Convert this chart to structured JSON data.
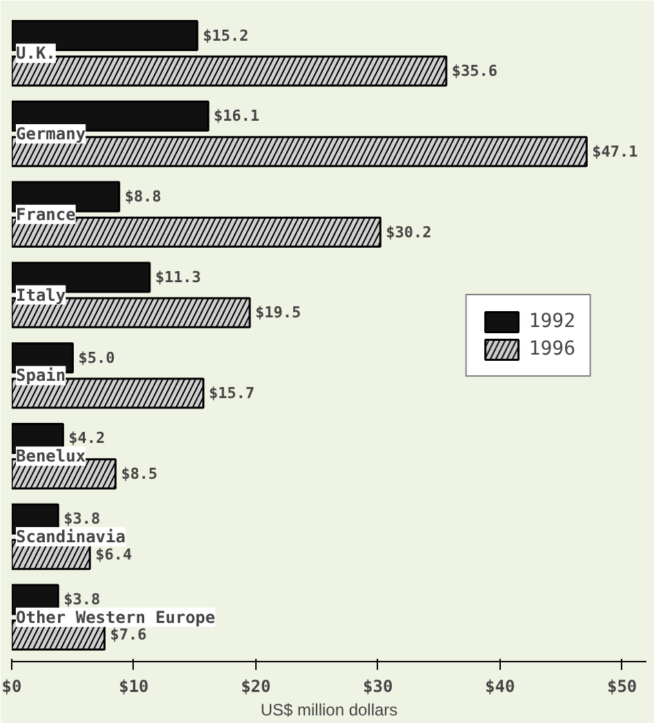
{
  "chart_data": {
    "type": "bar",
    "orientation": "horizontal",
    "xlabel": "US$ million dollars",
    "categories": [
      "U.K.",
      "Germany",
      "France",
      "Italy",
      "Spain",
      "Benelux",
      "Scandinavia",
      "Other Western Europe"
    ],
    "series": [
      {
        "name": "1992",
        "color": "#111111",
        "values": [
          15.2,
          16.1,
          8.8,
          11.3,
          5.0,
          4.2,
          3.8,
          3.8
        ],
        "value_labels": [
          "$15.2",
          "$16.1",
          "$8.8",
          "$11.3",
          "$5.0",
          "$4.2",
          "$3.8",
          "$3.8"
        ]
      },
      {
        "name": "1996",
        "color": "#d0d0d0",
        "values": [
          35.6,
          47.1,
          30.2,
          19.5,
          15.7,
          8.5,
          6.4,
          7.6
        ],
        "value_labels": [
          "$35.6",
          "$47.1",
          "$30.2",
          "$19.5",
          "$15.7",
          "$8.5",
          "$6.4",
          "$7.6"
        ]
      }
    ],
    "xlim": [
      0,
      52
    ],
    "xticks": [
      {
        "value": 0,
        "label": "$0"
      },
      {
        "value": 10,
        "label": "$10"
      },
      {
        "value": 20,
        "label": "$20"
      },
      {
        "value": 30,
        "label": "$30"
      },
      {
        "value": 40,
        "label": "$40"
      },
      {
        "value": 50,
        "label": "$50"
      }
    ],
    "grid": false,
    "legend": "right"
  }
}
